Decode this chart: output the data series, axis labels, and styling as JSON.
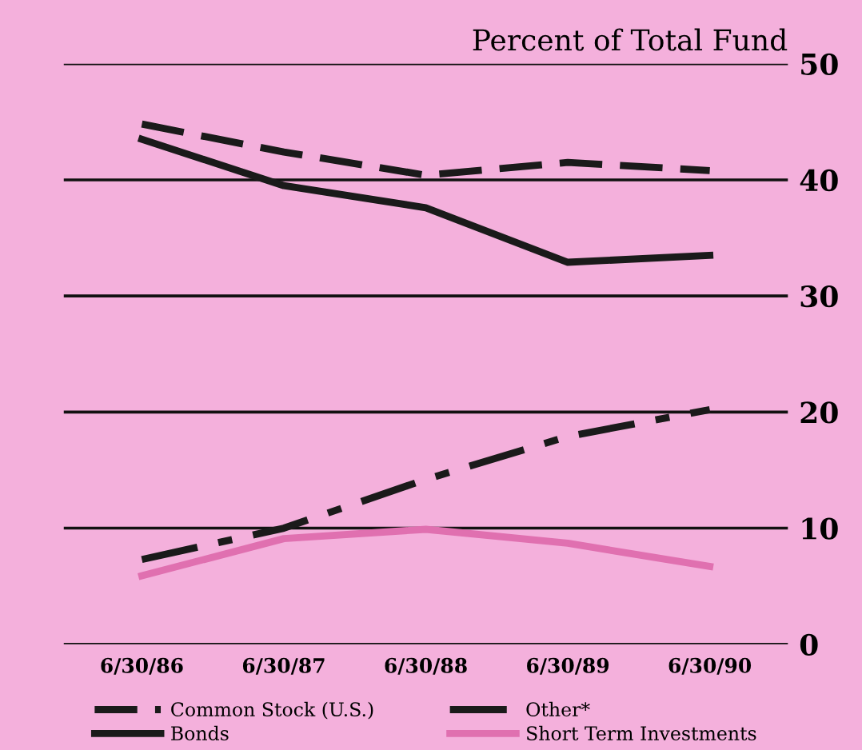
{
  "chart_data": {
    "type": "line",
    "title": "Percent of Total Fund",
    "categories": [
      "6/30/86",
      "6/30/87",
      "6/30/88",
      "6/30/89",
      "6/30/90"
    ],
    "series": [
      {
        "name": "Common Stock (U.S.)",
        "color": "#1a1a1a",
        "line_style": "dashed",
        "values": [
          44.8,
          42.4,
          40.4,
          41.5,
          40.8
        ]
      },
      {
        "name": "Other*",
        "color": "#1a1a1a",
        "line_style": "dashdot",
        "values": [
          7.3,
          10.0,
          14.2,
          17.9,
          20.2
        ]
      },
      {
        "name": "Bonds",
        "color": "#1a1a1a",
        "line_style": "solid",
        "values": [
          43.5,
          39.5,
          37.6,
          32.9,
          33.5
        ]
      },
      {
        "name": "Short Term Investments",
        "color": "#e070b0",
        "line_style": "solid",
        "values": [
          5.9,
          9.1,
          9.9,
          8.7,
          6.7
        ]
      }
    ],
    "ylim": [
      0,
      50
    ],
    "yticks": [
      0,
      10,
      20,
      30,
      40,
      50
    ],
    "grid": "y",
    "legend": "bottom",
    "marker": "none"
  }
}
